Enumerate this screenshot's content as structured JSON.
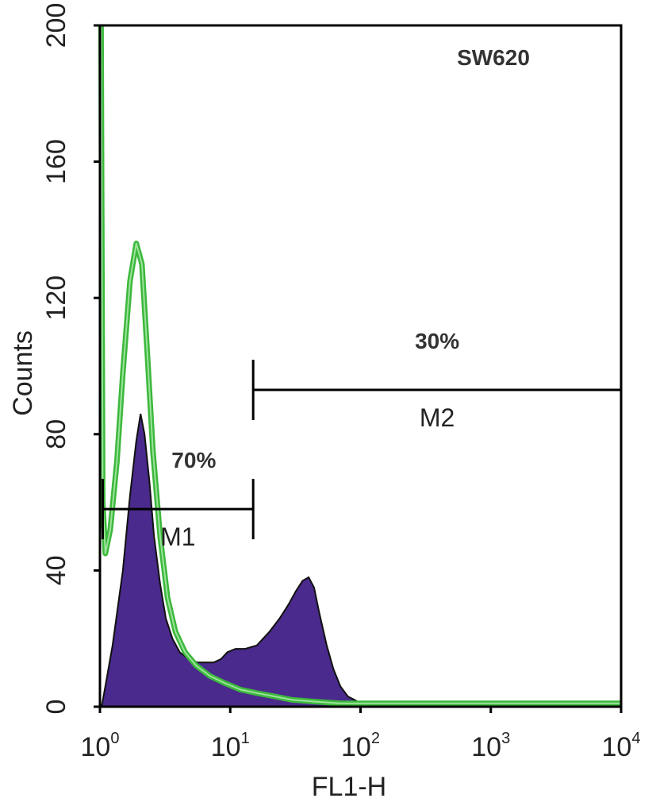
{
  "chart_data": {
    "type": "area",
    "title": "SW620",
    "xlabel": "FL1-H",
    "ylabel": "Counts",
    "x_scale": "log",
    "xlim": [
      1,
      10000
    ],
    "ylim": [
      0,
      200
    ],
    "x_ticks": [
      {
        "base": "10",
        "exp": "0",
        "value": 1
      },
      {
        "base": "10",
        "exp": "1",
        "value": 10
      },
      {
        "base": "10",
        "exp": "2",
        "value": 100
      },
      {
        "base": "10",
        "exp": "3",
        "value": 1000
      },
      {
        "base": "10",
        "exp": "4",
        "value": 10000
      }
    ],
    "y_ticks": [
      "0",
      "40",
      "80",
      "120",
      "160",
      "200"
    ],
    "grid": false,
    "colors": {
      "filled": "#4a2a8c",
      "outline": "#3cb83c",
      "axes": "#000000"
    },
    "series": [
      {
        "style": "filled",
        "x": [
          1.03,
          1.1,
          1.25,
          1.5,
          1.7,
          1.9,
          2.05,
          2.2,
          2.4,
          2.6,
          2.9,
          3.2,
          3.6,
          4.1,
          4.8,
          5.6,
          6.5,
          7.5,
          8.5,
          9.5,
          11,
          13,
          16,
          20,
          24,
          28,
          32,
          36,
          40,
          44,
          48,
          55,
          62,
          70,
          80,
          90,
          100,
          120,
          150,
          200,
          10000
        ],
        "y": [
          0,
          6,
          18,
          40,
          62,
          78,
          86,
          80,
          66,
          50,
          36,
          26,
          20,
          16,
          14,
          13,
          13,
          13,
          14,
          16,
          17,
          17,
          18,
          22,
          26,
          30,
          34,
          37,
          38,
          35,
          28,
          18,
          11,
          6,
          3,
          2,
          1,
          1,
          1,
          0,
          0
        ]
      },
      {
        "style": "outline",
        "x": [
          1.02,
          1.05,
          1.1,
          1.2,
          1.35,
          1.5,
          1.7,
          1.9,
          2.1,
          2.3,
          2.55,
          2.9,
          3.3,
          3.8,
          4.5,
          5.5,
          7,
          9,
          12,
          16,
          22,
          30,
          45,
          70,
          100,
          200,
          500,
          1000,
          10000
        ],
        "y": [
          200,
          60,
          45,
          52,
          72,
          98,
          125,
          136,
          130,
          105,
          75,
          50,
          32,
          22,
          16,
          12,
          9,
          7,
          5,
          4,
          3,
          2,
          1.5,
          1,
          1,
          1,
          1,
          1,
          1
        ]
      }
    ],
    "markers": [
      {
        "name": "M1",
        "from": 1.05,
        "to": 15,
        "y": 58,
        "percent": "70%"
      },
      {
        "name": "M2",
        "from": 15,
        "to": 10000,
        "y": 93,
        "percent": "30%"
      }
    ]
  }
}
